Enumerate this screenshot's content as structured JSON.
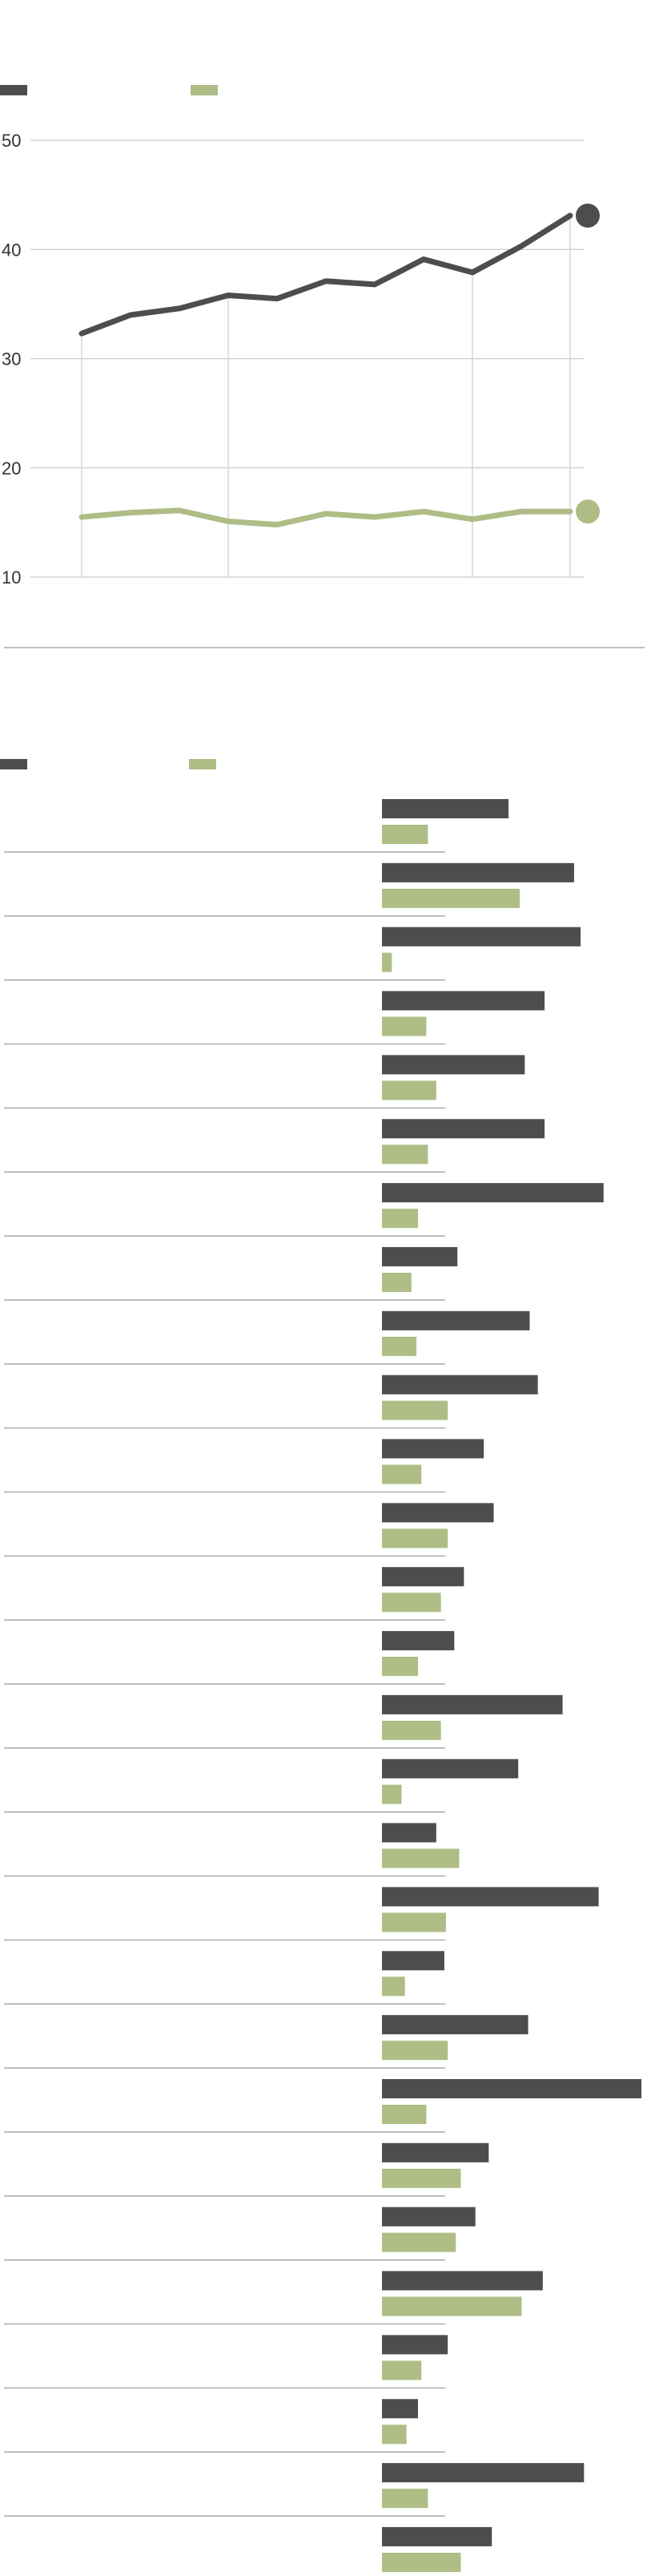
{
  "colors": {
    "series_dark": "#4d4d4d",
    "series_green": "#aebd86",
    "grid": "#cccccc",
    "divider": "#aaaaaa"
  },
  "chart_data": [
    {
      "type": "line",
      "legend_placement": "top-left",
      "grid": true,
      "ylim": [
        10,
        50
      ],
      "yticks": [
        "50",
        "40",
        "30",
        "20",
        "10"
      ],
      "x": [
        0,
        1,
        2,
        3,
        4,
        5,
        6,
        7,
        8,
        9,
        10
      ],
      "series": [
        {
          "color": "#4d4d4d",
          "values": [
            32.3,
            34.0,
            34.6,
            35.8,
            35.5,
            37.1,
            36.8,
            39.1,
            37.9,
            40.3,
            43.1
          ]
        },
        {
          "color": "#aebd86",
          "values": [
            15.5,
            15.9,
            16.1,
            15.1,
            14.8,
            15.8,
            15.5,
            16.0,
            15.3,
            16.0,
            16.0
          ]
        }
      ]
    },
    {
      "type": "bar",
      "orientation": "horizontal",
      "legend_placement": "top-left",
      "xlim": [
        0,
        100
      ],
      "series": [
        {
          "color": "#4d4d4d",
          "values": [
            48.5,
            73.6,
            76.1,
            62.3,
            54.7,
            62.3,
            84.9,
            28.9,
            56.6,
            59.7,
            39.0,
            42.8,
            31.4,
            27.7,
            69.2,
            52.2,
            20.8,
            83.0,
            23.9,
            56.0,
            99.4,
            40.9,
            35.8,
            61.6,
            25.2,
            13.8,
            77.4,
            42.1
          ]
        },
        {
          "color": "#aebd86",
          "values": [
            17.6,
            52.8,
            3.8,
            17.0,
            20.8,
            17.6,
            13.8,
            11.3,
            13.2,
            25.2,
            15.1,
            25.2,
            22.6,
            13.8,
            22.6,
            7.5,
            29.6,
            24.5,
            8.8,
            25.2,
            17.0,
            30.2,
            28.3,
            53.5,
            15.1,
            9.4,
            17.6,
            30.2
          ]
        }
      ]
    }
  ]
}
